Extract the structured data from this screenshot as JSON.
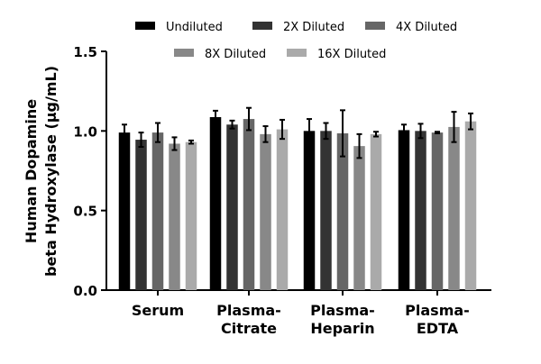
{
  "chart_data": {
    "type": "bar",
    "title": "",
    "xlabel": "",
    "ylabel": [
      "Human Dopamine",
      "beta Hydroxylase (µg/mL)"
    ],
    "ylim": [
      0,
      1.5
    ],
    "yticks": [
      "0.0",
      "0.5",
      "1.0",
      "1.5"
    ],
    "categories": [
      [
        "Serum"
      ],
      [
        "Plasma-",
        "Citrate"
      ],
      [
        "Plasma-",
        "Heparin"
      ],
      [
        "Plasma-",
        "EDTA"
      ]
    ],
    "legend_placement": "top",
    "grid": false,
    "series": [
      {
        "name": "Undiluted",
        "color": "#000000",
        "values": [
          0.99,
          1.087,
          1.0,
          1.005
        ],
        "errors": [
          0.05,
          0.04,
          0.075,
          0.035
        ]
      },
      {
        "name": "2X Diluted",
        "color": "#333333",
        "values": [
          0.945,
          1.04,
          1.0,
          1.0
        ],
        "errors": [
          0.045,
          0.025,
          0.05,
          0.045
        ]
      },
      {
        "name": "4X Diluted",
        "color": "#666666",
        "values": [
          0.99,
          1.075,
          0.985,
          0.99
        ],
        "errors": [
          0.06,
          0.07,
          0.145,
          0.005
        ]
      },
      {
        "name": "8X Diluted",
        "color": "#888888",
        "values": [
          0.92,
          0.98,
          0.905,
          1.025
        ],
        "errors": [
          0.04,
          0.05,
          0.075,
          0.095
        ]
      },
      {
        "name": "16X Diluted",
        "color": "#aaaaaa",
        "values": [
          0.93,
          1.01,
          0.98,
          1.06
        ],
        "errors": [
          0.01,
          0.06,
          0.015,
          0.05
        ]
      }
    ]
  }
}
